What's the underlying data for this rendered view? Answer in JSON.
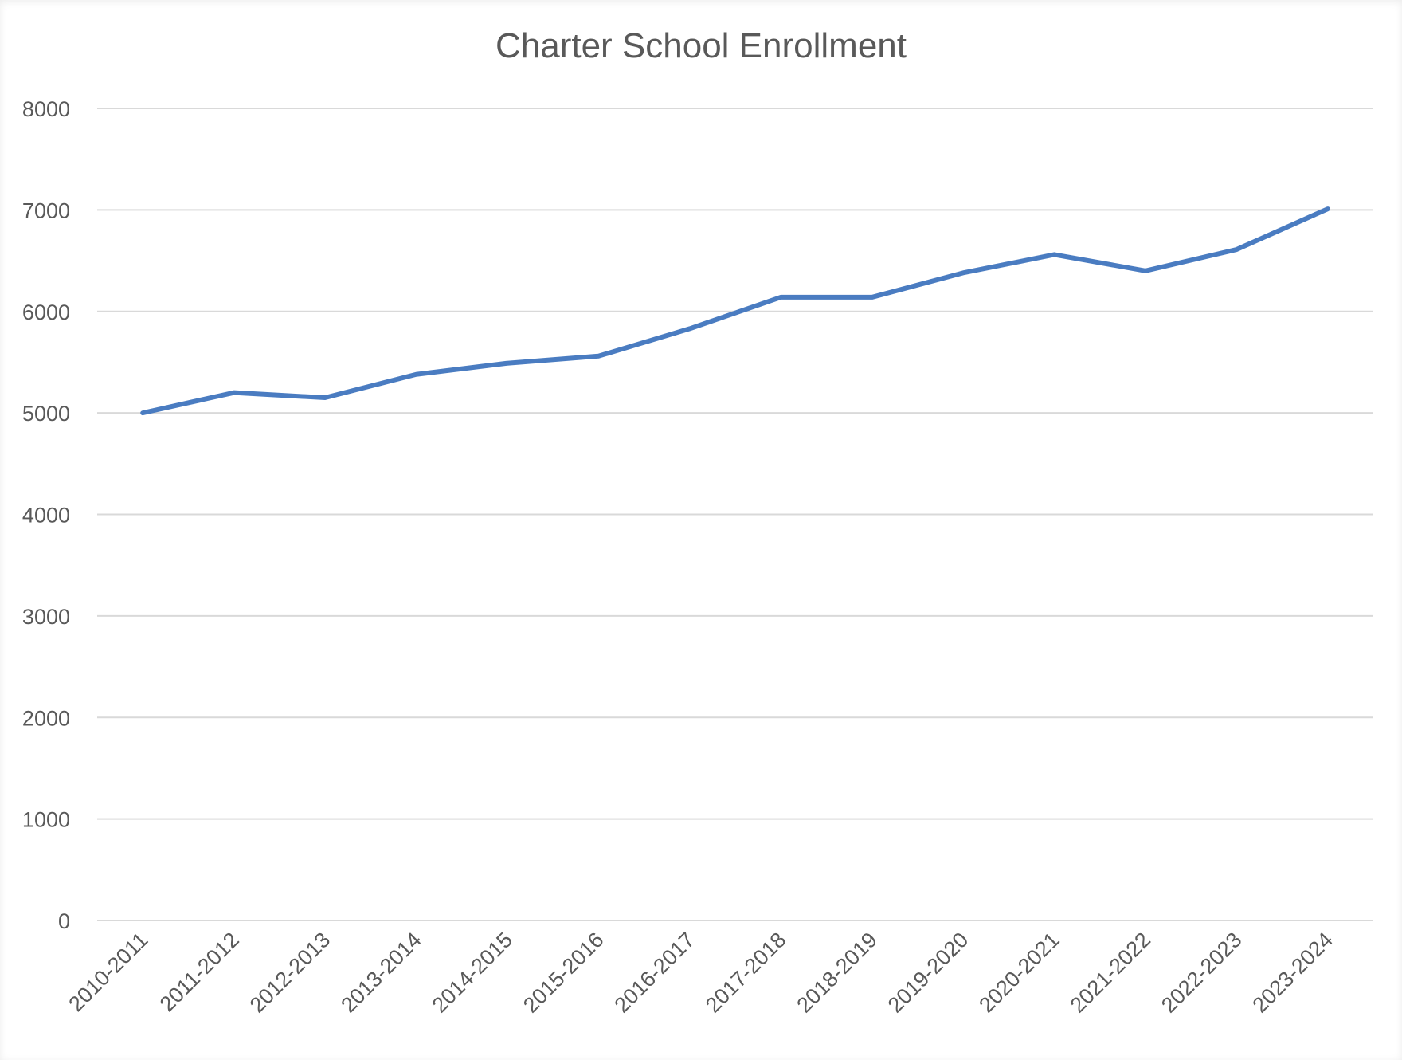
{
  "chart_data": {
    "type": "line",
    "title": "Charter School Enrollment",
    "xlabel": "",
    "ylabel": "",
    "categories": [
      "2010-2011",
      "2011-2012",
      "2012-2013",
      "2013-2014",
      "2014-2015",
      "2015-2016",
      "2016-2017",
      "2017-2018",
      "2018-2019",
      "2019-2020",
      "2020-2021",
      "2021-2022",
      "2022-2023",
      "2023-2024"
    ],
    "series": [
      {
        "values": [
          5000,
          5200,
          5150,
          5380,
          5490,
          5560,
          5830,
          6140,
          6140,
          6380,
          6560,
          6400,
          6610,
          7010
        ],
        "color": "#4a7cc1"
      }
    ],
    "ylim": [
      0,
      8000
    ],
    "yticks": [
      0,
      1000,
      2000,
      3000,
      4000,
      5000,
      6000,
      7000,
      8000
    ],
    "grid": "horizontal",
    "legend": "none"
  }
}
